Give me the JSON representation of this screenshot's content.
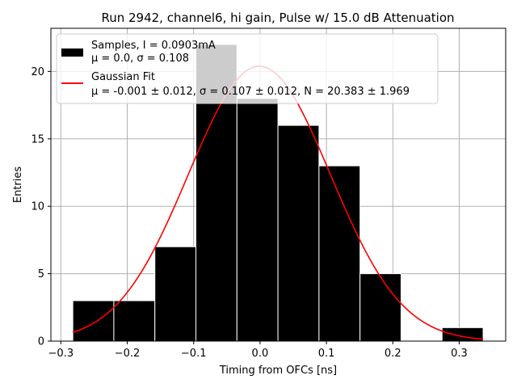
{
  "chart_data": {
    "type": "bar",
    "title": "Run 2942, channel6, hi gain, Pulse w/ 15.0 dB Attenuation",
    "xlabel": "Timing from OFCs [ns]",
    "ylabel": "Entries",
    "xlim": [
      -0.315,
      0.37
    ],
    "ylim": [
      0,
      23.2
    ],
    "xticks": [
      -0.3,
      -0.2,
      -0.1,
      0.0,
      0.1,
      0.2,
      0.3
    ],
    "xtick_labels": [
      "−0.3",
      "−0.2",
      "−0.1",
      "0.0",
      "0.1",
      "0.2",
      "0.3"
    ],
    "yticks": [
      0,
      5,
      10,
      15,
      20
    ],
    "ytick_labels": [
      "0",
      "5",
      "10",
      "15",
      "20"
    ],
    "grid": true,
    "legend_position": "upper-left",
    "bin_edges": [
      -0.282,
      -0.2202,
      -0.1584,
      -0.0966,
      -0.0348,
      0.027,
      0.0888,
      0.1506,
      0.2124,
      0.2742,
      0.336
    ],
    "counts": [
      3,
      3,
      7,
      22,
      18,
      16,
      13,
      5,
      0,
      1
    ],
    "fit": {
      "name": "Gaussian Fit",
      "label": "μ = -0.001 ± 0.012, σ = 0.107 ± 0.012, N = 20.383 ± 1.969",
      "mu": -0.001,
      "sigma": 0.107,
      "amplitude": 20.383,
      "x_range": [
        -0.282,
        0.336
      ]
    },
    "samples": {
      "name": "Samples, I = 0.0903mA",
      "label": "μ = 0.0, σ = 0.108"
    },
    "colors": {
      "bars": "#000000",
      "bar_edge": "#ffffff",
      "fit_line": "#ff0000",
      "grid": "#b0b0b0"
    }
  }
}
